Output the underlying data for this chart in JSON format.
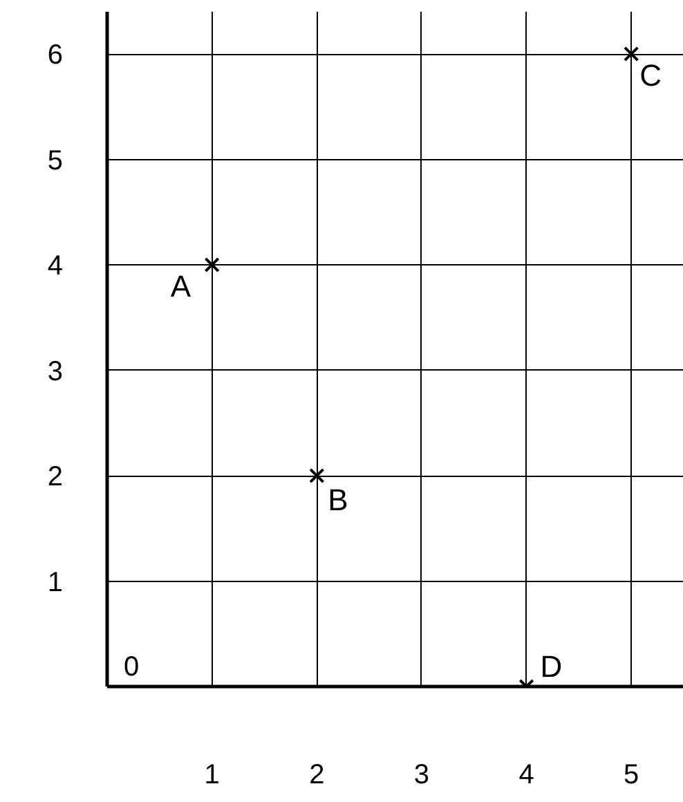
{
  "chart_data": {
    "type": "scatter",
    "x": [
      1,
      2,
      5,
      4
    ],
    "values": [
      4,
      2,
      6,
      0
    ],
    "color": "#000000",
    "marker": "cross",
    "xlim": [
      0,
      5.5
    ],
    "ylim": [
      0,
      6.4
    ],
    "xticks": [
      {
        "value": 0,
        "label": null
      },
      1,
      2,
      3,
      4,
      5
    ],
    "yticks": [
      {
        "value": 0,
        "label": null
      },
      1,
      2,
      3,
      4,
      5,
      6
    ],
    "grid": true,
    "annotations": [
      {
        "text": "A",
        "x": 1,
        "y": 4
      },
      {
        "text": "B",
        "x": 2,
        "y": 2
      },
      {
        "text": "C",
        "x": 5,
        "y": 6
      },
      {
        "text": "D",
        "x": 4,
        "y": 0
      },
      "0"
    ]
  }
}
